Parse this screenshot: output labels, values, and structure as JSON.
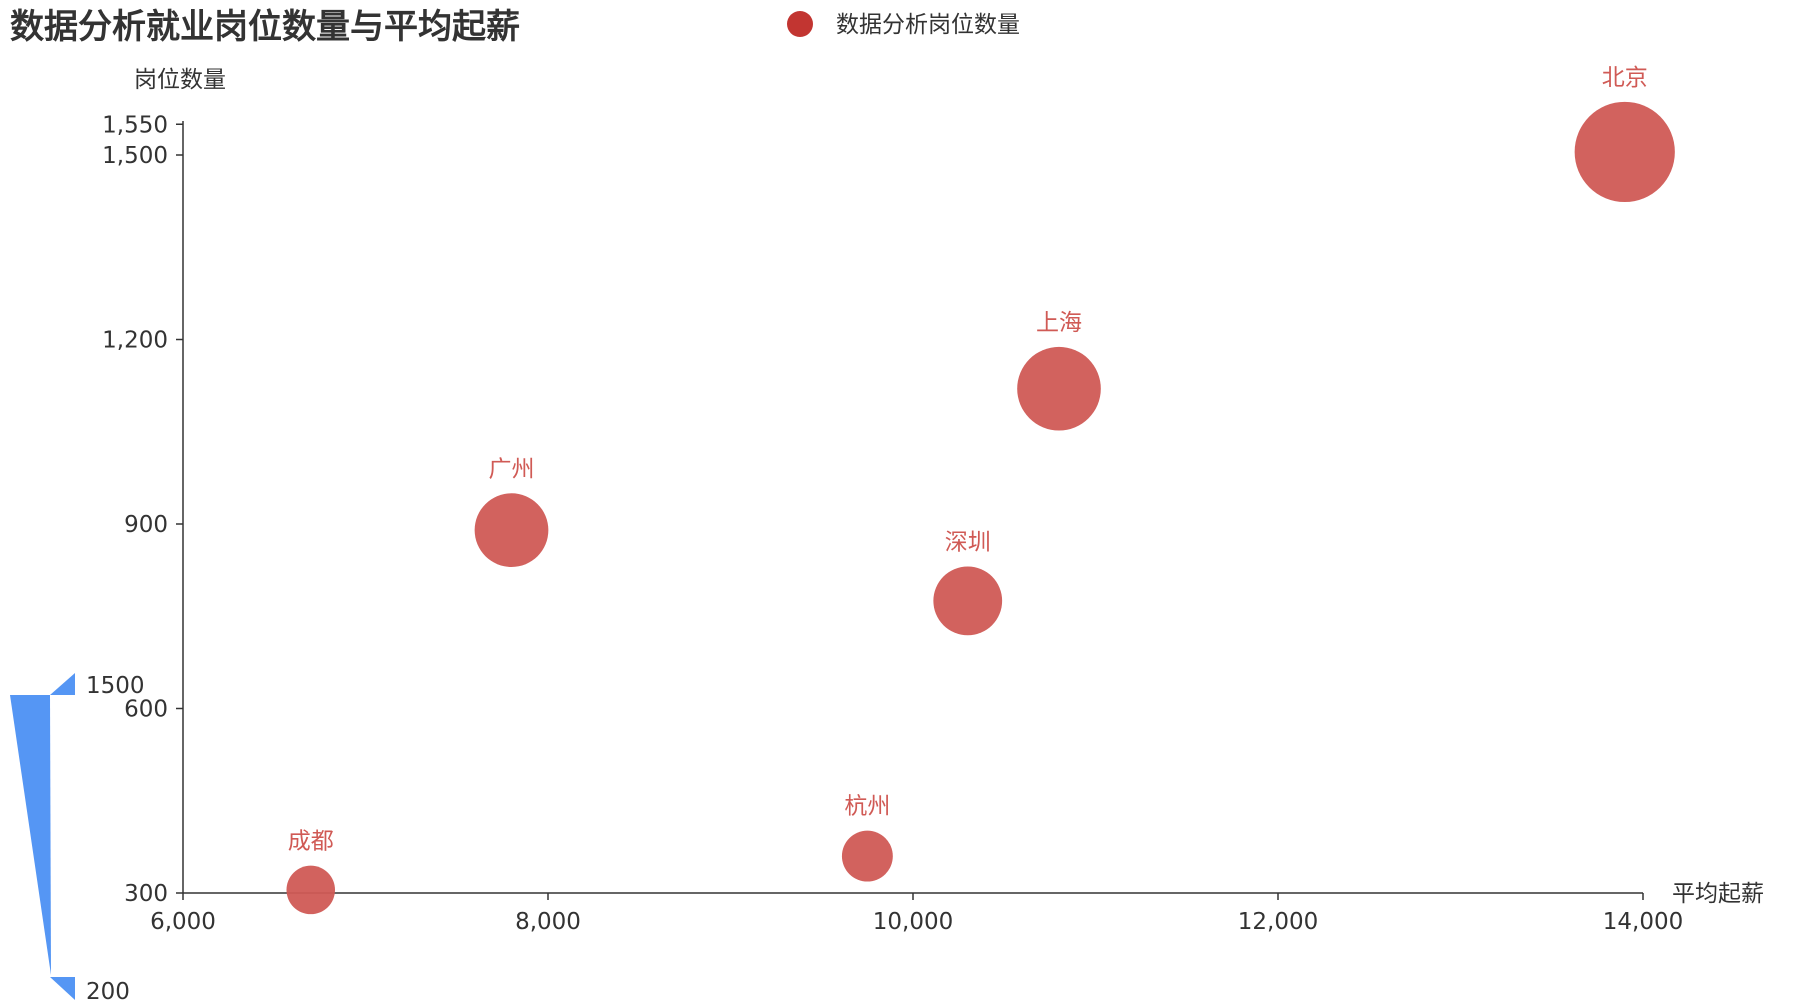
{
  "chart_data": {
    "type": "scatter",
    "title": "数据分析就业岗位数量与平均起薪",
    "legend": {
      "position": "top-center",
      "entries": [
        "数据分析岗位数量"
      ]
    },
    "xlabel": "平均起薪",
    "ylabel": "岗位数量",
    "xlim": [
      6000,
      14000
    ],
    "ylim": [
      300,
      1550
    ],
    "x_ticks": [
      "6,000",
      "8,000",
      "10,000",
      "12,000",
      "14,000"
    ],
    "y_ticks": [
      "300",
      "600",
      "900",
      "1,200",
      "1,500",
      "1,550"
    ],
    "y_tick_values": [
      300,
      600,
      900,
      1200,
      1500,
      1550
    ],
    "grid": false,
    "series": [
      {
        "name": "数据分析岗位数量",
        "color": "#d05a55",
        "points": [
          {
            "label": "北京",
            "x": 13900,
            "y": 1505
          },
          {
            "label": "上海",
            "x": 10800,
            "y": 1120
          },
          {
            "label": "广州",
            "x": 7800,
            "y": 890
          },
          {
            "label": "深圳",
            "x": 10300,
            "y": 775
          },
          {
            "label": "杭州",
            "x": 9750,
            "y": 360
          },
          {
            "label": "成都",
            "x": 6700,
            "y": 305
          }
        ]
      }
    ],
    "visual_map": {
      "min": 200,
      "max": 1500,
      "min_label": "200",
      "max_label": "1500",
      "color": "#5596f4",
      "dimension": "岗位数量 (bubble size)"
    }
  }
}
